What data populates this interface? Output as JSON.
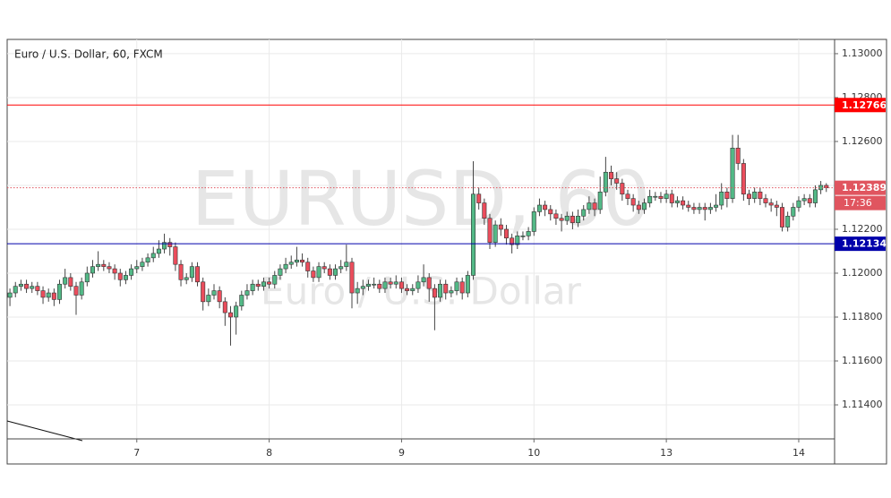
{
  "chart_data": {
    "type": "candlestick",
    "title": "Euro / U.S. Dollar, 60, FXCM",
    "watermark": "EURUSD, 60",
    "watermark_subtitle": "Euro / U.S. Dollar",
    "categories": [
      null,
      null,
      null,
      null,
      null,
      null,
      null,
      null,
      null,
      null,
      null,
      null,
      null,
      null,
      null,
      null,
      null,
      null,
      null,
      null,
      null,
      null,
      null,
      "7",
      null,
      null,
      null,
      null,
      null,
      null,
      null,
      null,
      null,
      null,
      null,
      null,
      null,
      null,
      null,
      null,
      null,
      null,
      null,
      null,
      null,
      null,
      null,
      "8",
      null,
      null,
      null,
      null,
      null,
      null,
      null,
      null,
      null,
      null,
      null,
      null,
      null,
      null,
      null,
      null,
      null,
      null,
      null,
      null,
      null,
      null,
      null,
      "9",
      null,
      null,
      null,
      null,
      null,
      null,
      null,
      null,
      null,
      null,
      null,
      null,
      null,
      null,
      null,
      null,
      null,
      null,
      null,
      null,
      null,
      null,
      null,
      "10",
      null,
      null,
      null,
      null,
      null,
      null,
      null,
      null,
      null,
      null,
      null,
      null,
      null,
      null,
      null,
      null,
      null,
      null,
      null,
      null,
      null,
      null,
      null,
      "13",
      null,
      null,
      null,
      null,
      null,
      null,
      null,
      null,
      null,
      null,
      null,
      null,
      null,
      null,
      null,
      null,
      null,
      null,
      null,
      null,
      null,
      null,
      null,
      "14",
      null,
      null,
      null,
      null,
      null
    ],
    "open": [
      1.1189,
      1.1191,
      1.1194,
      1.1195,
      1.1193,
      1.1194,
      1.1192,
      1.1189,
      1.1191,
      1.1188,
      1.1195,
      1.1198,
      1.1194,
      1.119,
      1.1196,
      1.12,
      1.1203,
      1.1204,
      1.1203,
      1.1202,
      1.12,
      1.1197,
      1.1199,
      1.1202,
      1.1203,
      1.1205,
      1.1207,
      1.1209,
      1.1211,
      1.1214,
      1.1212,
      1.1204,
      1.1197,
      1.1198,
      1.1203,
      1.1196,
      1.1187,
      1.119,
      1.1192,
      1.1187,
      1.1182,
      1.118,
      1.1185,
      1.119,
      1.1192,
      1.1195,
      1.1194,
      1.1196,
      1.1195,
      1.1199,
      1.1202,
      1.1204,
      1.1205,
      1.1206,
      1.1205,
      1.1201,
      1.1198,
      1.1203,
      1.1202,
      1.1199,
      1.1202,
      1.1203,
      1.1205,
      1.1191,
      1.1193,
      1.1194,
      1.1195,
      1.1195,
      1.1193,
      1.1196,
      1.1195,
      1.1196,
      1.1193,
      1.1192,
      1.1193,
      1.1196,
      1.1198,
      1.1193,
      1.1189,
      1.1195,
      1.1191,
      1.1192,
      1.1196,
      1.1191,
      1.1199,
      1.1236,
      1.1232,
      1.1225,
      1.1214,
      1.1222,
      1.122,
      1.1216,
      1.1213,
      1.1217,
      1.1217,
      1.1219,
      1.1228,
      1.1231,
      1.1229,
      1.1227,
      1.1225,
      1.1224,
      1.1226,
      1.1223,
      1.1226,
      1.1229,
      1.1232,
      1.1229,
      1.1237,
      1.1246,
      1.1243,
      1.1241,
      1.1236,
      1.1234,
      1.1231,
      1.1229,
      1.1232,
      1.1235,
      1.1235,
      1.1234,
      1.1236,
      1.1232,
      1.1233,
      1.1231,
      1.123,
      1.1229,
      1.123,
      1.1229,
      1.123,
      1.1231,
      1.1237,
      1.1234,
      1.1257,
      1.125,
      1.1236,
      1.1234,
      1.1237,
      1.1234,
      1.1232,
      1.1231,
      1.123,
      1.1221,
      1.1226,
      1.123,
      1.1233,
      1.1234,
      1.1232,
      1.1238,
      1.124
    ],
    "high": [
      1.1193,
      1.1196,
      1.1197,
      1.1197,
      1.1196,
      1.1196,
      1.1194,
      1.1193,
      1.1193,
      1.1197,
      1.1202,
      1.12,
      1.1196,
      1.1198,
      1.1203,
      1.1206,
      1.121,
      1.1206,
      1.1205,
      1.1204,
      1.1202,
      1.1201,
      1.1204,
      1.1206,
      1.1207,
      1.1209,
      1.1212,
      1.1215,
      1.1218,
      1.1216,
      1.1214,
      1.1206,
      1.12,
      1.1205,
      1.1205,
      1.1198,
      1.1193,
      1.1195,
      1.1194,
      1.1189,
      1.1185,
      1.1187,
      1.1192,
      1.1195,
      1.1197,
      1.1197,
      1.1198,
      1.1198,
      1.1201,
      1.1204,
      1.1207,
      1.1208,
      1.1212,
      1.1209,
      1.1207,
      1.1203,
      1.1205,
      1.1205,
      1.1204,
      1.1204,
      1.1206,
      1.1213,
      1.1207,
      1.1196,
      1.1197,
      1.1197,
      1.1198,
      1.1197,
      1.1198,
      1.1198,
      1.1199,
      1.1198,
      1.1195,
      1.1195,
      1.1199,
      1.1204,
      1.12,
      1.1195,
      1.1197,
      1.1197,
      1.1194,
      1.1198,
      1.1198,
      1.1201,
      1.1251,
      1.1239,
      1.1234,
      1.1227,
      1.1224,
      1.1225,
      1.1222,
      1.1218,
      1.1219,
      1.1219,
      1.1221,
      1.123,
      1.1234,
      1.1233,
      1.1231,
      1.1229,
      1.1227,
      1.1228,
      1.1228,
      1.1229,
      1.1231,
      1.1235,
      1.1234,
      1.1244,
      1.1253,
      1.1249,
      1.1246,
      1.1243,
      1.1238,
      1.1236,
      1.1233,
      1.1234,
      1.1238,
      1.1237,
      1.1237,
      1.1238,
      1.1238,
      1.1235,
      1.1235,
      1.1233,
      1.1232,
      1.1232,
      1.1232,
      1.1232,
      1.1236,
      1.1241,
      1.1239,
      1.1263,
      1.1263,
      1.1252,
      1.1238,
      1.1239,
      1.1239,
      1.1236,
      1.1234,
      1.1233,
      1.1232,
      1.1228,
      1.1232,
      1.1235,
      1.1236,
      1.1236,
      1.124,
      1.1242,
      1.1241
    ],
    "low": [
      1.1185,
      1.1189,
      1.1192,
      1.1191,
      1.1191,
      1.119,
      1.1186,
      1.1187,
      1.1185,
      1.1186,
      1.1193,
      1.1192,
      1.1181,
      1.1188,
      1.1194,
      1.1198,
      1.1201,
      1.1201,
      1.12,
      1.1197,
      1.1194,
      1.1195,
      1.1197,
      1.12,
      1.1201,
      1.1203,
      1.1205,
      1.1207,
      1.1209,
      1.1208,
      1.1201,
      1.1194,
      1.1195,
      1.1196,
      1.1194,
      1.1183,
      1.1185,
      1.1188,
      1.1184,
      1.1176,
      1.1167,
      1.1172,
      1.1183,
      1.1188,
      1.119,
      1.1192,
      1.1192,
      1.1193,
      1.1193,
      1.1197,
      1.12,
      1.1202,
      1.1203,
      1.1203,
      1.1198,
      1.1196,
      1.1196,
      1.12,
      1.1197,
      1.1197,
      1.12,
      1.1201,
      1.1184,
      1.1186,
      1.119,
      1.1192,
      1.1193,
      1.1191,
      1.1191,
      1.1193,
      1.1193,
      1.1191,
      1.119,
      1.119,
      1.1191,
      1.1194,
      1.1187,
      1.1174,
      1.1187,
      1.1188,
      1.1189,
      1.119,
      1.1188,
      1.1189,
      1.1197,
      1.1229,
      1.1222,
      1.1211,
      1.1212,
      1.1217,
      1.1213,
      1.1209,
      1.1211,
      1.1215,
      1.1215,
      1.1217,
      1.1226,
      1.1226,
      1.1224,
      1.1222,
      1.1219,
      1.1222,
      1.122,
      1.1221,
      1.1224,
      1.1227,
      1.1226,
      1.1227,
      1.1235,
      1.124,
      1.1238,
      1.1233,
      1.1231,
      1.1228,
      1.1227,
      1.1227,
      1.123,
      1.1233,
      1.1232,
      1.1232,
      1.123,
      1.123,
      1.1229,
      1.1228,
      1.1227,
      1.1227,
      1.1224,
      1.1227,
      1.1228,
      1.1229,
      1.123,
      1.1232,
      1.1247,
      1.1233,
      1.1231,
      1.1232,
      1.1231,
      1.123,
      1.1228,
      1.1226,
      1.1219,
      1.1219,
      1.1224,
      1.1228,
      1.1231,
      1.123,
      1.123,
      1.1236,
      1.1237
    ],
    "close": [
      1.1191,
      1.1194,
      1.1195,
      1.1193,
      1.1194,
      1.1192,
      1.1189,
      1.1191,
      1.1188,
      1.1195,
      1.1198,
      1.1194,
      1.119,
      1.1196,
      1.12,
      1.1203,
      1.1204,
      1.1203,
      1.1202,
      1.12,
      1.1197,
      1.1199,
      1.1202,
      1.1203,
      1.1205,
      1.1207,
      1.1209,
      1.1211,
      1.1214,
      1.1212,
      1.1204,
      1.1197,
      1.1198,
      1.1203,
      1.1196,
      1.1187,
      1.119,
      1.1192,
      1.1187,
      1.1182,
      1.118,
      1.1185,
      1.119,
      1.1192,
      1.1195,
      1.1194,
      1.1196,
      1.1195,
      1.1199,
      1.1202,
      1.1204,
      1.1205,
      1.1206,
      1.1205,
      1.1201,
      1.1198,
      1.1203,
      1.1202,
      1.1199,
      1.1202,
      1.1203,
      1.1205,
      1.1191,
      1.1193,
      1.1194,
      1.1195,
      1.1195,
      1.1193,
      1.1196,
      1.1195,
      1.1196,
      1.1193,
      1.1192,
      1.1193,
      1.1196,
      1.1198,
      1.1193,
      1.1189,
      1.1195,
      1.1191,
      1.1192,
      1.1196,
      1.1191,
      1.1199,
      1.1236,
      1.1232,
      1.1225,
      1.1214,
      1.1222,
      1.122,
      1.1216,
      1.1213,
      1.1217,
      1.1217,
      1.1219,
      1.1228,
      1.1231,
      1.1229,
      1.1227,
      1.1225,
      1.1224,
      1.1226,
      1.1223,
      1.1226,
      1.1229,
      1.1232,
      1.1229,
      1.1237,
      1.1246,
      1.1243,
      1.1241,
      1.1236,
      1.1234,
      1.1231,
      1.1229,
      1.1232,
      1.1235,
      1.1235,
      1.1234,
      1.1236,
      1.1232,
      1.1233,
      1.1231,
      1.123,
      1.1229,
      1.123,
      1.1229,
      1.123,
      1.1231,
      1.1237,
      1.1234,
      1.1257,
      1.125,
      1.1236,
      1.1234,
      1.1237,
      1.1234,
      1.1232,
      1.1231,
      1.123,
      1.1221,
      1.1226,
      1.123,
      1.1233,
      1.1234,
      1.1232,
      1.1238,
      1.124,
      1.12389
    ],
    "up_color": "#53b987",
    "down_color": "#eb4d5c",
    "ylim": [
      1.11245,
      1.13065
    ],
    "yticks": [
      {
        "value": 1.114,
        "label": "1.11400"
      },
      {
        "value": 1.116,
        "label": "1.11600"
      },
      {
        "value": 1.118,
        "label": "1.11800"
      },
      {
        "value": 1.12,
        "label": "1.12000"
      },
      {
        "value": 1.122,
        "label": "1.12200"
      },
      {
        "value": 1.124,
        "label": "1.12400"
      },
      {
        "value": 1.126,
        "label": "1.12600"
      },
      {
        "value": 1.128,
        "label": "1.12800"
      },
      {
        "value": 1.13,
        "label": "1.13000"
      }
    ],
    "grid": true,
    "levels": [
      {
        "value": 1.12766,
        "color": "#ff0000",
        "style": "solid"
      },
      {
        "value": 1.12134,
        "color": "#0000aa",
        "style": "solid"
      },
      {
        "value": 1.12389,
        "color": "#e0555f",
        "style": "dotted"
      }
    ],
    "countdown": "17:36"
  }
}
